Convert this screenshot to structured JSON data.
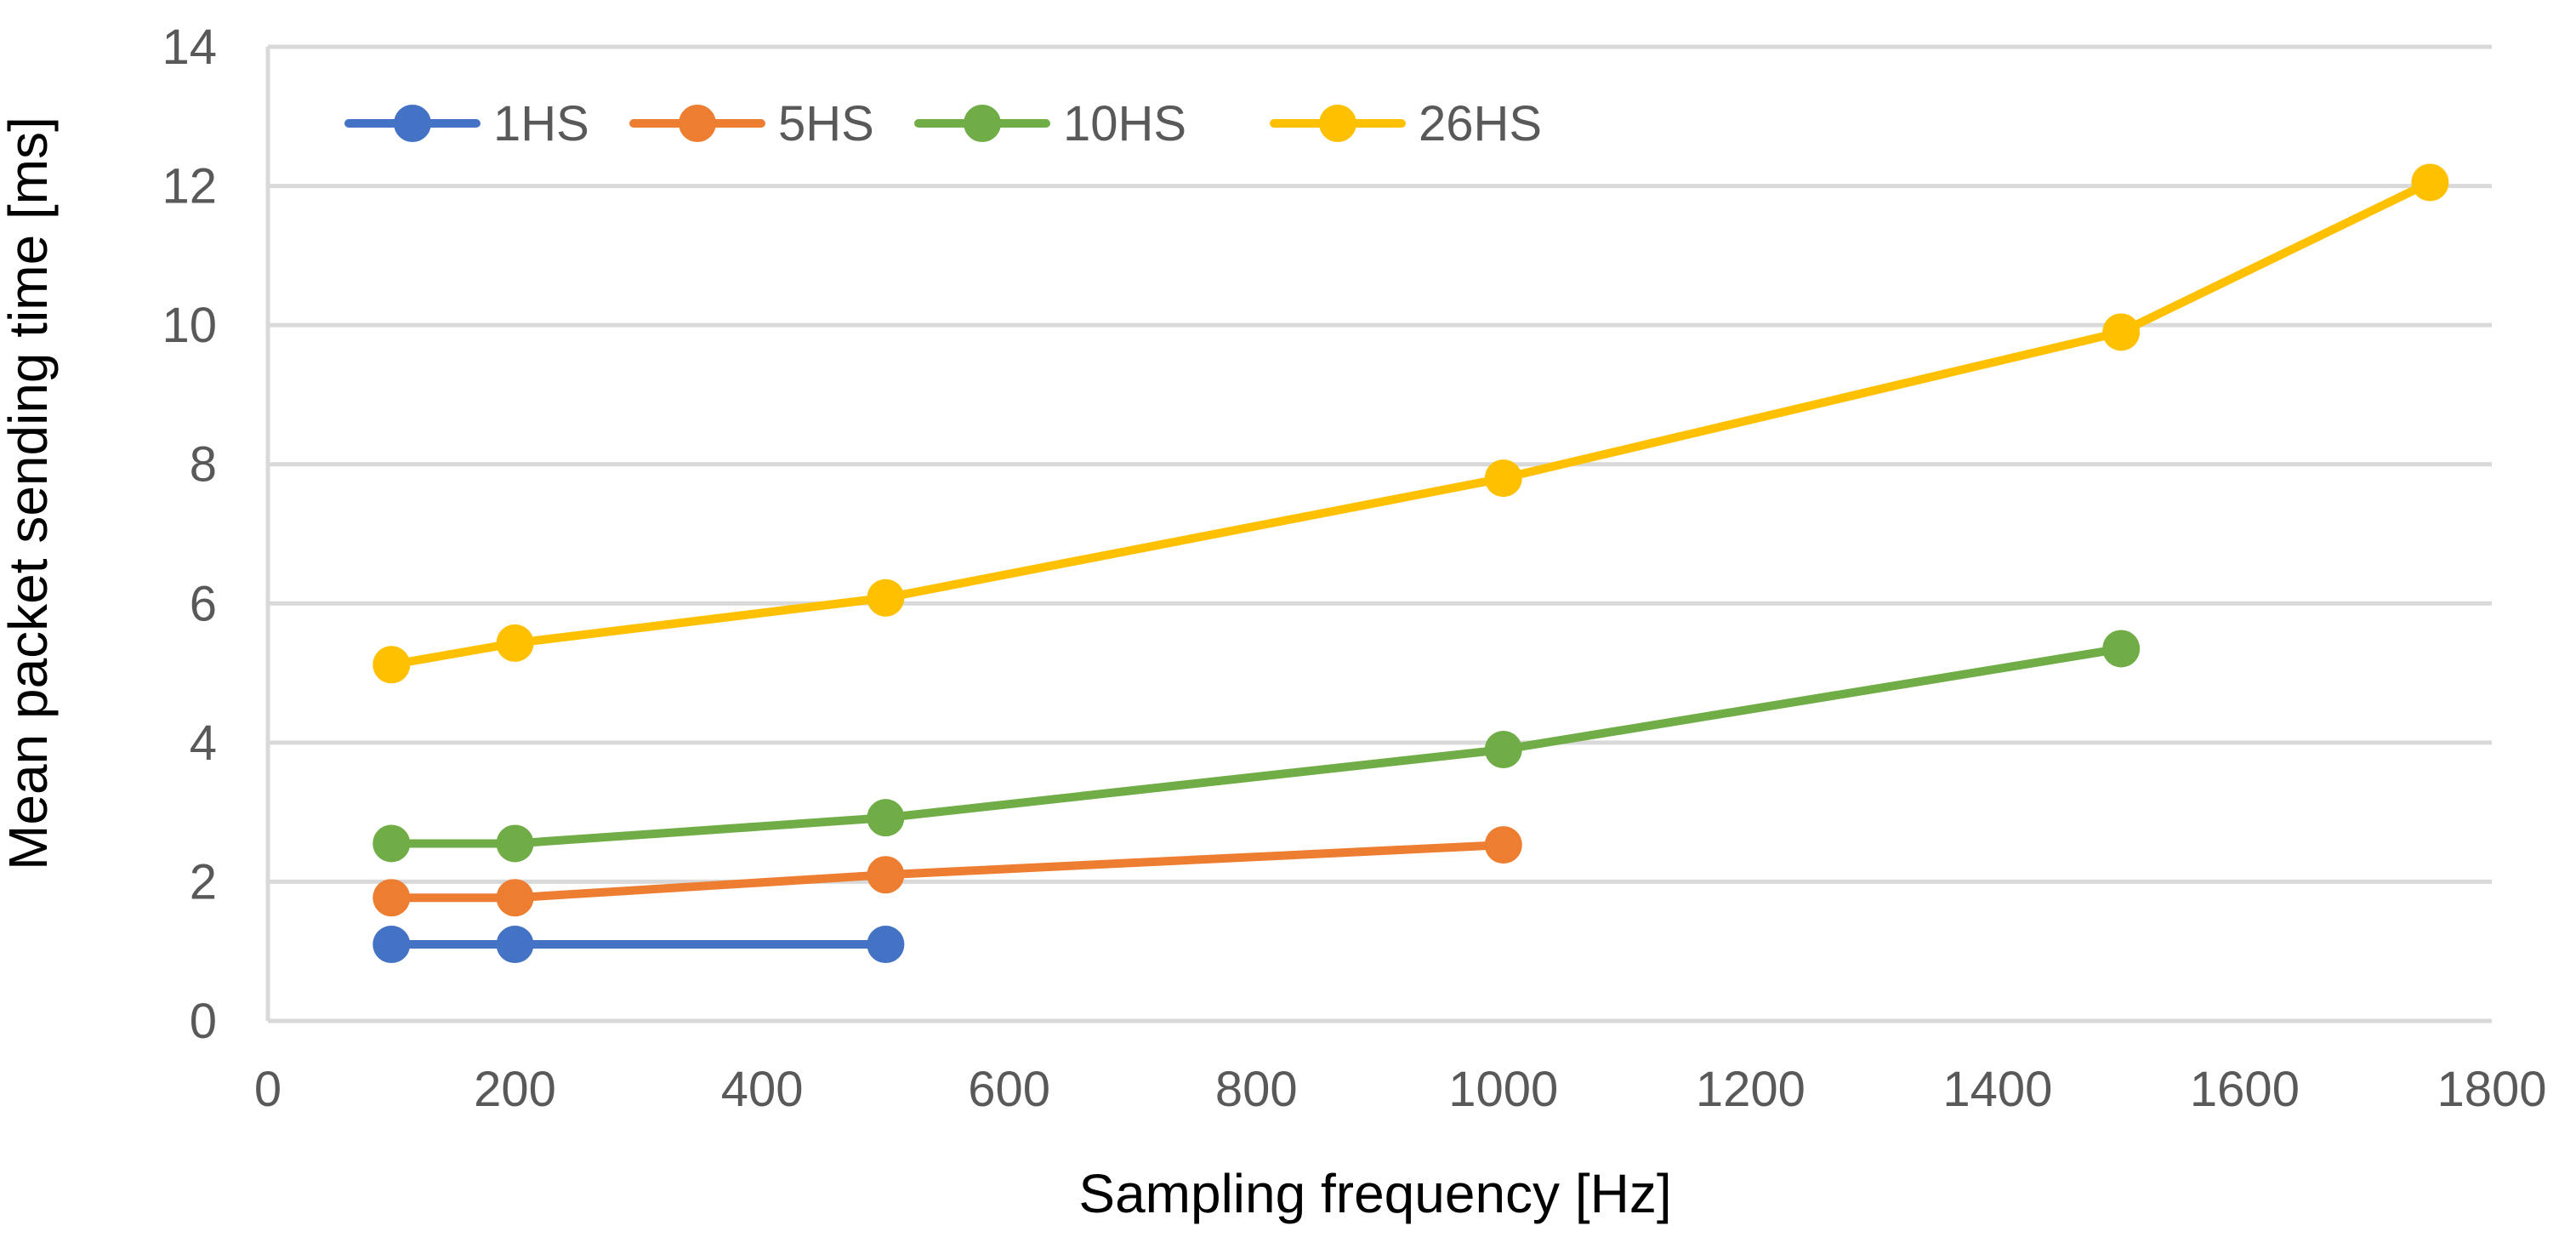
{
  "chart_data": {
    "type": "line",
    "title": "",
    "xlabel": "Sampling frequency [Hz]",
    "ylabel": "Mean packet sending time [ms]",
    "xlim": [
      0,
      1800
    ],
    "ylim": [
      0,
      14
    ],
    "x_ticks": [
      0,
      200,
      400,
      600,
      800,
      1000,
      1200,
      1400,
      1600,
      1800
    ],
    "y_ticks": [
      0,
      2,
      4,
      6,
      8,
      10,
      12,
      14
    ],
    "grid": true,
    "legend_position": "top-left",
    "series": [
      {
        "name": "1HS",
        "color": "#4472c4",
        "x": [
          100,
          200,
          500
        ],
        "y": [
          1.1,
          1.1,
          1.1
        ]
      },
      {
        "name": "5HS",
        "color": "#ed7d31",
        "x": [
          100,
          200,
          500,
          1000
        ],
        "y": [
          1.77,
          1.77,
          2.1,
          2.53
        ]
      },
      {
        "name": "10HS",
        "color": "#70ad47",
        "x": [
          100,
          200,
          500,
          1000,
          1500
        ],
        "y": [
          2.55,
          2.55,
          2.92,
          3.9,
          5.35
        ]
      },
      {
        "name": "26HS",
        "color": "#ffc000",
        "x": [
          100,
          200,
          500,
          1000,
          1500,
          1750
        ],
        "y": [
          5.12,
          5.43,
          6.08,
          7.8,
          9.9,
          12.05
        ]
      }
    ]
  }
}
